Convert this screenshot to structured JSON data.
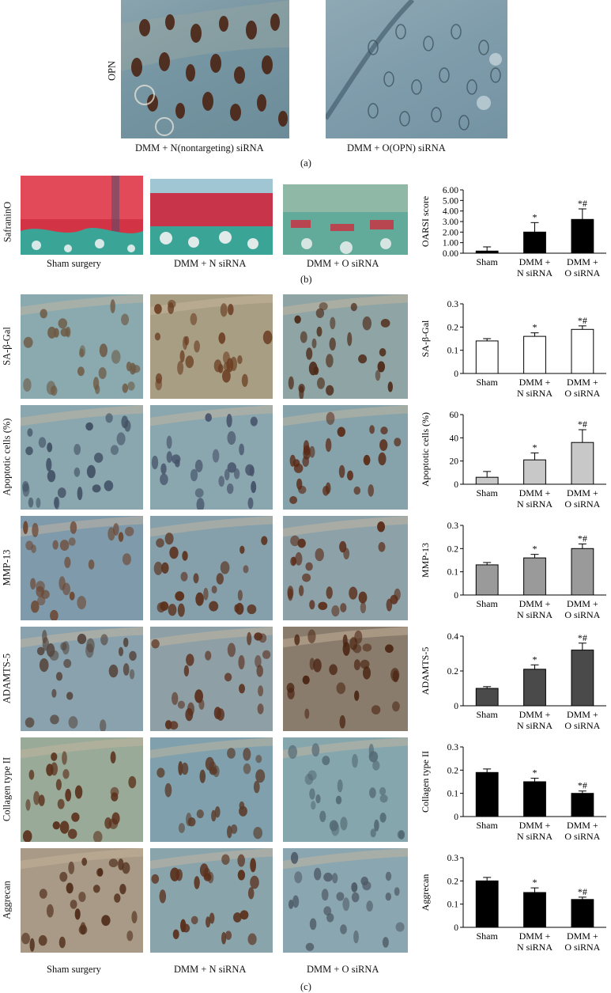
{
  "panel_a": {
    "row_label": "OPN",
    "captions": [
      "DMM + N(nontargeting) siRNA",
      "DMM + O(OPN) siRNA"
    ],
    "panel_letter": "(a)"
  },
  "panel_b": {
    "row_label": "SafraninO",
    "captions": [
      "Sham surgery",
      "DMM + N siRNA",
      "DMM + O siRNA"
    ],
    "panel_letter": "(b)"
  },
  "panel_c": {
    "row_labels": [
      "SA-β-Gal",
      "Apoptotic cells (%)",
      "MMP-13",
      "ADAMTS-5",
      "Collagen type II",
      "Aggrecan"
    ],
    "captions": [
      "Sham surgery",
      "DMM + N siRNA",
      "DMM + O siRNA"
    ],
    "panel_letter": "(c)"
  },
  "colors": {
    "ihc_background": "#6f9aa8",
    "brown_stain": "#5a2f1a",
    "safranin_red": "#d2303f",
    "fast_green": "#3aa597",
    "black_bar": "#000000",
    "white_bar": "#ffffff",
    "light_gray_bar": "#c8c8c8",
    "mid_gray_bar": "#9a9a9a",
    "dark_gray_bar": "#4a4a4a"
  },
  "chart_data": [
    {
      "type": "bar",
      "ylabel": "OARSI score",
      "categories": [
        "Sham",
        "DMM +\nN siRNA",
        "DMM +\nO siRNA"
      ],
      "values": [
        0.2,
        2.0,
        3.2
      ],
      "errors": [
        0.4,
        0.9,
        1.0
      ],
      "significance": [
        "",
        "*",
        "*#"
      ],
      "ylim": [
        0,
        6
      ],
      "yticks": [
        "0.00",
        "1.00",
        "2.00",
        "3.00",
        "4.00",
        "5.00",
        "6.00"
      ],
      "bar_color": "#000000"
    },
    {
      "type": "bar",
      "ylabel": "SA-β-Gal",
      "categories": [
        "Sham",
        "DMM +\nN siRNA",
        "DMM +\nO siRNA"
      ],
      "values": [
        0.14,
        0.16,
        0.19
      ],
      "errors": [
        0.01,
        0.015,
        0.015
      ],
      "significance": [
        "",
        "*",
        "*#"
      ],
      "ylim": [
        0,
        0.3
      ],
      "yticks": [
        "0",
        "0.1",
        "0.2",
        "0.3"
      ],
      "bar_color": "#ffffff"
    },
    {
      "type": "bar",
      "ylabel": "Apoptotic cells (%)",
      "categories": [
        "Sham",
        "DMM +\nN siRNA",
        "DMM +\nO siRNA"
      ],
      "values": [
        6,
        21,
        36
      ],
      "errors": [
        5,
        6,
        11
      ],
      "significance": [
        "",
        "*",
        "*#"
      ],
      "ylim": [
        0,
        60
      ],
      "yticks": [
        "0",
        "20",
        "40",
        "60"
      ],
      "bar_color": "#c8c8c8"
    },
    {
      "type": "bar",
      "ylabel": "MMP-13",
      "categories": [
        "Sham",
        "DMM +\nN siRNA",
        "DMM +\nO siRNA"
      ],
      "values": [
        0.13,
        0.16,
        0.2
      ],
      "errors": [
        0.01,
        0.015,
        0.02
      ],
      "significance": [
        "",
        "*",
        "*#"
      ],
      "ylim": [
        0,
        0.3
      ],
      "yticks": [
        "0",
        "0.1",
        "0.2",
        "0.3"
      ],
      "bar_color": "#9a9a9a"
    },
    {
      "type": "bar",
      "ylabel": "ADAMTS-5",
      "categories": [
        "Sham",
        "DMM +\nN siRNA",
        "DMM +\nO siRNA"
      ],
      "values": [
        0.1,
        0.21,
        0.32
      ],
      "errors": [
        0.01,
        0.025,
        0.04
      ],
      "significance": [
        "",
        "*",
        "*#"
      ],
      "ylim": [
        0,
        0.4
      ],
      "yticks": [
        "0",
        "0.2",
        "0.4"
      ],
      "bar_color": "#4a4a4a"
    },
    {
      "type": "bar",
      "ylabel": "Collagen type II",
      "categories": [
        "Sham",
        "DMM +\nN siRNA",
        "DMM +\nO siRNA"
      ],
      "values": [
        0.19,
        0.15,
        0.1
      ],
      "errors": [
        0.015,
        0.015,
        0.01
      ],
      "significance": [
        "",
        "*",
        "*#"
      ],
      "ylim": [
        0,
        0.3
      ],
      "yticks": [
        "0",
        "0.1",
        "0.2",
        "0.3"
      ],
      "bar_color": "#000000"
    },
    {
      "type": "bar",
      "ylabel": "Aggrecan",
      "categories": [
        "Sham",
        "DMM +\nN siRNA",
        "DMM +\nO siRNA"
      ],
      "values": [
        0.2,
        0.15,
        0.12
      ],
      "errors": [
        0.015,
        0.02,
        0.01
      ],
      "significance": [
        "",
        "*",
        "*#"
      ],
      "ylim": [
        0,
        0.3
      ],
      "yticks": [
        "0",
        "0.1",
        "0.2",
        "0.3"
      ],
      "bar_color": "#000000"
    }
  ]
}
